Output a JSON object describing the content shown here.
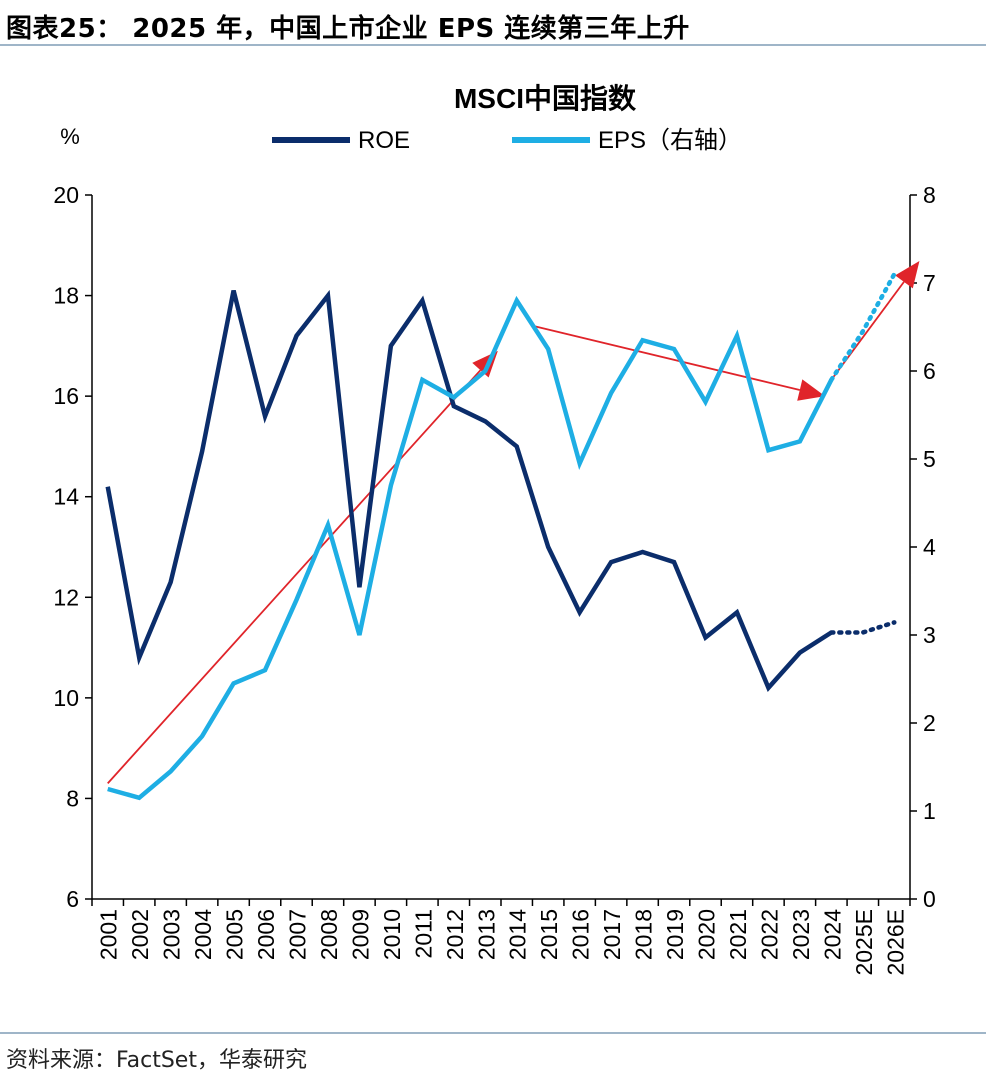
{
  "figure": {
    "title": "图表25：  2025 年，中国上市企业 EPS 连续第三年上升",
    "source": "资料来源：FactSet，华泰研究"
  },
  "chart_data": {
    "type": "line",
    "title": "MSCI中国指数",
    "left_unit": "%",
    "categories": [
      "2001",
      "2002",
      "2003",
      "2004",
      "2005",
      "2006",
      "2007",
      "2008",
      "2009",
      "2010",
      "2011",
      "2012",
      "2013",
      "2014",
      "2015",
      "2016",
      "2017",
      "2018",
      "2019",
      "2020",
      "2021",
      "2022",
      "2023",
      "2024",
      "2025E",
      "2026E"
    ],
    "y_left": {
      "min": 6,
      "max": 20,
      "ticks": [
        "6",
        "8",
        "10",
        "12",
        "14",
        "16",
        "18",
        "20"
      ]
    },
    "y_right": {
      "min": 0,
      "max": 8,
      "ticks": [
        "0",
        "1",
        "2",
        "3",
        "4",
        "5",
        "6",
        "7",
        "8"
      ]
    },
    "series": [
      {
        "name": "ROE",
        "axis": "left",
        "color": "#0b2d6b",
        "values": [
          14.2,
          10.8,
          12.3,
          14.9,
          18.1,
          15.6,
          17.2,
          18.0,
          12.2,
          17.0,
          17.9,
          15.8,
          15.5,
          15.0,
          13.0,
          11.7,
          12.7,
          12.9,
          12.7,
          11.2,
          11.7,
          10.2,
          10.9,
          11.3,
          11.3,
          11.5
        ],
        "estimate_from_index": 23
      },
      {
        "name": "EPS（右轴）",
        "axis": "right",
        "color": "#1eaee4",
        "values": [
          1.25,
          1.15,
          1.45,
          1.85,
          2.45,
          2.6,
          3.4,
          4.25,
          3.0,
          4.7,
          5.9,
          5.7,
          6.0,
          6.8,
          6.25,
          4.95,
          5.75,
          6.35,
          6.25,
          5.65,
          6.4,
          5.1,
          5.2,
          5.9,
          6.45,
          7.1
        ],
        "estimate_from_index": 23
      }
    ],
    "trend_arrows": [
      {
        "axis": "left",
        "from": [
          0,
          8.3
        ],
        "to": [
          12.4,
          16.9
        ]
      },
      {
        "axis": "left",
        "from": [
          13.5,
          17.4
        ],
        "to": [
          22.8,
          16.0
        ]
      },
      {
        "axis": "right",
        "from": [
          23.0,
          5.9
        ],
        "to": [
          25.8,
          7.25
        ]
      }
    ],
    "legend_position": "top"
  },
  "colors": {
    "axis": "#000000",
    "trend": "#e0242a",
    "rule": "#9fb5c8"
  }
}
